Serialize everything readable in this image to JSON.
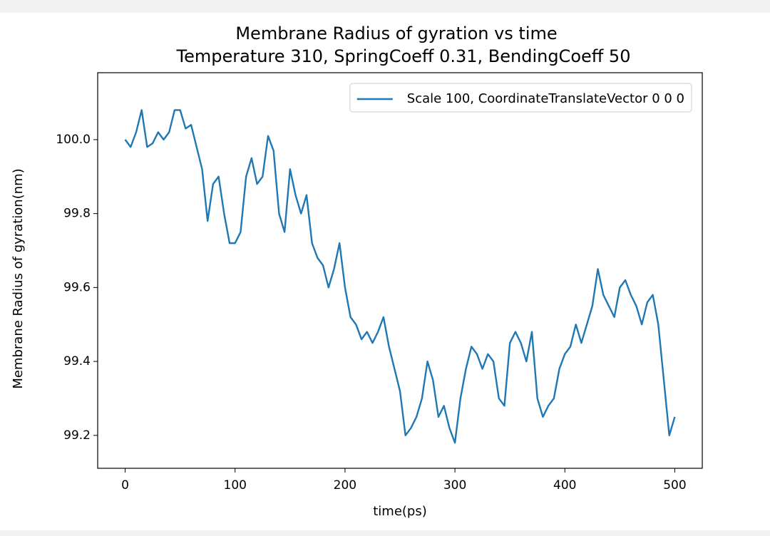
{
  "chart_data": {
    "type": "line",
    "title": "Membrane Radius of gyration vs time",
    "subtitle": "Temperature 310, SpringCoeff 0.31, BendingCoeff 50",
    "x_label": "time(ps)",
    "y_label": "Membrane Radius of gyration(nm)",
    "x": [
      0,
      5,
      10,
      15,
      20,
      25,
      30,
      35,
      40,
      45,
      50,
      55,
      60,
      65,
      70,
      75,
      80,
      85,
      90,
      95,
      100,
      105,
      110,
      115,
      120,
      125,
      130,
      135,
      140,
      145,
      150,
      155,
      160,
      165,
      170,
      175,
      180,
      185,
      190,
      195,
      200,
      205,
      210,
      215,
      220,
      225,
      230,
      235,
      240,
      245,
      250,
      255,
      260,
      265,
      270,
      275,
      280,
      285,
      290,
      295,
      300,
      305,
      310,
      315,
      320,
      325,
      330,
      335,
      340,
      345,
      350,
      355,
      360,
      365,
      370,
      375,
      380,
      385,
      390,
      395,
      400,
      405,
      410,
      415,
      420,
      425,
      430,
      435,
      440,
      445,
      450,
      455,
      460,
      465,
      470,
      475,
      480,
      485,
      490,
      495,
      500
    ],
    "series": [
      {
        "name": "Scale 100, CoordinateTranslateVector 0 0 0",
        "color": "#1f77b4",
        "values": [
          100.0,
          99.98,
          100.02,
          100.08,
          99.98,
          99.99,
          100.02,
          100.0,
          100.02,
          100.08,
          100.08,
          100.03,
          100.04,
          99.98,
          99.92,
          99.78,
          99.88,
          99.9,
          99.8,
          99.72,
          99.72,
          99.75,
          99.9,
          99.95,
          99.88,
          99.9,
          100.01,
          99.97,
          99.8,
          99.75,
          99.92,
          99.85,
          99.8,
          99.85,
          99.72,
          99.68,
          99.66,
          99.6,
          99.65,
          99.72,
          99.6,
          99.52,
          99.5,
          99.46,
          99.48,
          99.45,
          99.48,
          99.52,
          99.44,
          99.38,
          99.32,
          99.2,
          99.22,
          99.25,
          99.3,
          99.4,
          99.35,
          99.25,
          99.28,
          99.22,
          99.18,
          99.3,
          99.38,
          99.44,
          99.42,
          99.38,
          99.42,
          99.4,
          99.3,
          99.28,
          99.45,
          99.48,
          99.45,
          99.4,
          99.48,
          99.3,
          99.25,
          99.28,
          99.3,
          99.38,
          99.42,
          99.44,
          99.5,
          99.45,
          99.5,
          99.55,
          99.65,
          99.58,
          99.55,
          99.52,
          99.6,
          99.62,
          99.58,
          99.55,
          99.5,
          99.56,
          99.58,
          99.5,
          99.35,
          99.2,
          99.25
        ]
      }
    ],
    "xlim": [
      -25,
      525
    ],
    "ylim": [
      99.111,
      100.181
    ],
    "xticks": [
      0,
      100,
      200,
      300,
      400,
      500
    ],
    "yticks": [
      99.2,
      99.4,
      99.6,
      99.8,
      {
        "value": 100,
        "label": "100.0"
      }
    ],
    "legend": "upper right",
    "grid": false
  }
}
